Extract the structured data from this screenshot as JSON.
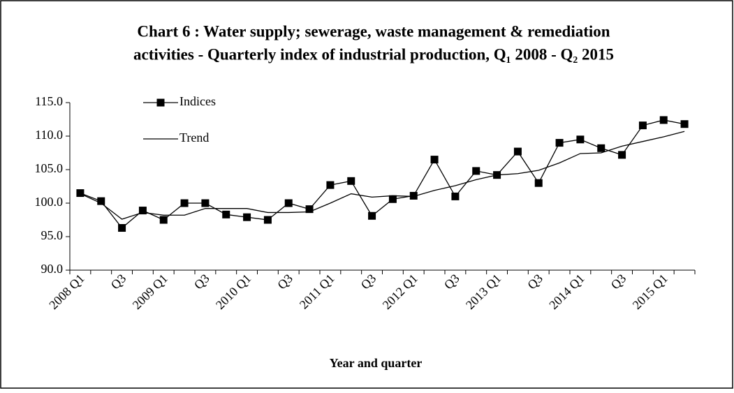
{
  "chart_data": {
    "type": "line",
    "title": [
      "Chart 6 : Water supply; sewerage, waste management & remediation",
      "activities - Quarterly index of industrial production, Q₁ 2008 - Q₂ 2015"
    ],
    "x_label": "Year  and quarter",
    "categories": [
      "2008 Q1",
      null,
      "Q3",
      null,
      "2009 Q1",
      null,
      "Q3",
      null,
      "2010 Q1",
      null,
      "Q3",
      null,
      "2011 Q1",
      null,
      "Q3",
      null,
      "2012 Q1",
      null,
      "Q3",
      null,
      "2013 Q1",
      null,
      "Q3",
      null,
      "2014 Q1",
      null,
      "Q3",
      null,
      "2015 Q1",
      null
    ],
    "series": [
      {
        "name": "Indices",
        "color": "#000000",
        "marker": "square",
        "values": [
          101.5,
          100.3,
          96.3,
          98.9,
          97.5,
          100.0,
          100.0,
          98.3,
          97.9,
          97.5,
          100.0,
          99.1,
          102.7,
          103.3,
          98.1,
          100.6,
          101.1,
          106.5,
          101.0,
          104.8,
          104.2,
          107.7,
          103.0,
          109.0,
          109.5,
          108.2,
          107.2,
          111.6,
          112.4,
          111.8
        ]
      },
      {
        "name": "Trend",
        "color": "#000000",
        "values": [
          101.4,
          100.0,
          97.6,
          98.6,
          98.2,
          98.2,
          99.2,
          99.2,
          99.2,
          98.6,
          98.6,
          98.7,
          100.0,
          101.4,
          100.9,
          101.1,
          101.0,
          101.9,
          102.6,
          103.5,
          104.2,
          104.4,
          104.9,
          106.0,
          107.4,
          107.5,
          108.5,
          109.2,
          109.9,
          110.7
        ]
      }
    ],
    "ylim": [
      90,
      115
    ],
    "yticks": [
      {
        "value": 90,
        "label": "90.0"
      },
      {
        "value": 95,
        "label": "95.0"
      },
      {
        "value": 100,
        "label": "100.0"
      },
      {
        "value": 105,
        "label": "105.0"
      },
      {
        "value": 110,
        "label": "110.0"
      },
      {
        "value": 115,
        "label": "115.0"
      }
    ],
    "grid": false,
    "legend": "upper left"
  }
}
